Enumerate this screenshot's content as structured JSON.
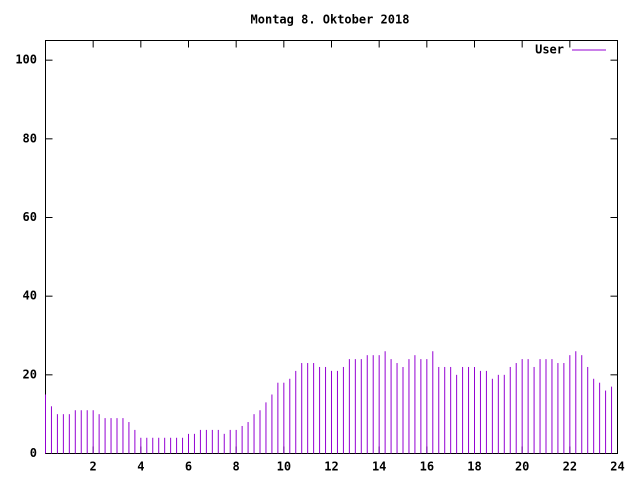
{
  "chart_data": {
    "type": "impulse",
    "title": "Montag 8. Oktober 2018",
    "x": [
      0,
      0.25,
      0.5,
      0.75,
      1,
      1.25,
      1.5,
      1.75,
      2,
      2.25,
      2.5,
      2.75,
      3,
      3.25,
      3.5,
      3.75,
      4,
      4.25,
      4.5,
      4.75,
      5,
      5.25,
      5.5,
      5.75,
      6,
      6.25,
      6.5,
      6.75,
      7,
      7.25,
      7.5,
      7.75,
      8,
      8.25,
      8.5,
      8.75,
      9,
      9.25,
      9.5,
      9.75,
      10,
      10.25,
      10.5,
      10.75,
      11,
      11.25,
      11.5,
      11.75,
      12,
      12.25,
      12.5,
      12.75,
      13,
      13.25,
      13.5,
      13.75,
      14,
      14.25,
      14.5,
      14.75,
      15,
      15.25,
      15.5,
      15.75,
      16,
      16.25,
      16.5,
      16.75,
      17,
      17.25,
      17.5,
      17.75,
      18,
      18.25,
      18.5,
      18.75,
      19,
      19.25,
      19.5,
      19.75,
      20,
      20.25,
      20.5,
      20.75,
      21,
      21.25,
      21.5,
      21.75,
      22,
      22.25,
      22.5,
      22.75,
      23,
      23.25,
      23.5,
      23.75
    ],
    "series": [
      {
        "name": "User",
        "color": "#9400d3",
        "values": [
          15,
          12,
          10,
          10,
          10,
          11,
          11,
          11,
          11,
          10,
          9,
          9,
          9,
          9,
          8,
          6,
          4,
          4,
          4,
          4,
          4,
          4,
          4,
          4,
          5,
          5,
          6,
          6,
          6,
          6,
          5,
          6,
          6,
          7,
          8,
          10,
          11,
          13,
          15,
          18,
          18,
          19,
          21,
          23,
          23,
          23,
          22,
          22,
          21,
          21,
          22,
          24,
          24,
          24,
          25,
          25,
          25,
          26,
          24,
          23,
          22,
          24,
          25,
          24,
          24,
          26,
          22,
          22,
          22,
          20,
          22,
          22,
          22,
          21,
          21,
          19,
          20,
          20,
          22,
          23,
          24,
          24,
          22,
          24,
          24,
          24,
          23,
          23,
          25,
          26,
          25,
          22,
          19,
          18,
          16,
          17
        ]
      }
    ],
    "xlim": [
      0,
      24
    ],
    "xticks": [
      2,
      4,
      6,
      8,
      10,
      12,
      14,
      16,
      18,
      20,
      22,
      24
    ],
    "ylim": [
      0,
      105
    ],
    "yticks": [
      0,
      20,
      40,
      60,
      80,
      100
    ],
    "legend": "top-right"
  }
}
